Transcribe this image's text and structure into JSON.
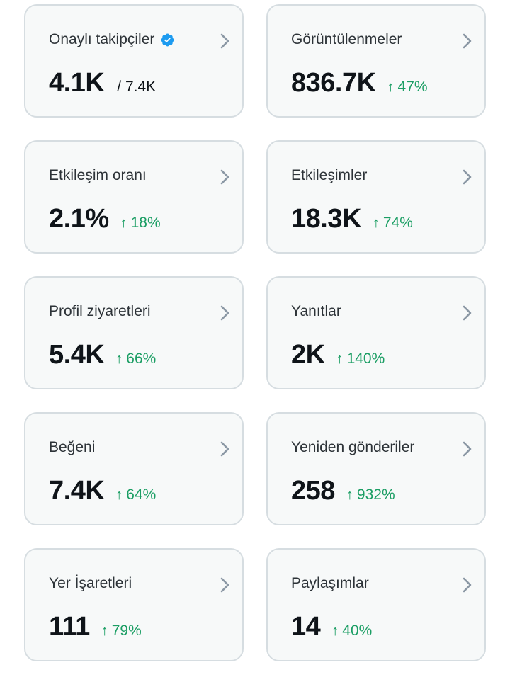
{
  "colors": {
    "card_background": "#f7f9f9",
    "card_border": "#d6dde1",
    "positive_change": "#1b9e64",
    "verified_badge": "#1d9bf0",
    "chevron": "#8b98a5"
  },
  "cards": [
    {
      "title": "Onaylı takipçiler",
      "verified_icon": "verified-badge-icon",
      "value": "4.1K",
      "secondary": "/ 7.4K"
    },
    {
      "title": "Görüntülenmeler",
      "value": "836.7K",
      "change": "47%",
      "change_icon": "arrow-up-icon"
    },
    {
      "title": "Etkileşim oranı",
      "value": "2.1%",
      "change": "18%",
      "change_icon": "arrow-up-icon"
    },
    {
      "title": "Etkileşimler",
      "value": "18.3K",
      "change": "74%",
      "change_icon": "arrow-up-icon"
    },
    {
      "title": "Profil ziyaretleri",
      "value": "5.4K",
      "change": "66%",
      "change_icon": "arrow-up-icon"
    },
    {
      "title": "Yanıtlar",
      "value": "2K",
      "change": "140%",
      "change_icon": "arrow-up-icon"
    },
    {
      "title": "Beğeni",
      "value": "7.4K",
      "change": "64%",
      "change_icon": "arrow-up-icon"
    },
    {
      "title": "Yeniden gönderiler",
      "value": "258",
      "change": "932%",
      "change_icon": "arrow-up-icon"
    },
    {
      "title": "Yer İşaretleri",
      "value": "111",
      "change": "79%",
      "change_icon": "arrow-up-icon"
    },
    {
      "title": "Paylaşımlar",
      "value": "14",
      "change": "40%",
      "change_icon": "arrow-up-icon"
    }
  ]
}
